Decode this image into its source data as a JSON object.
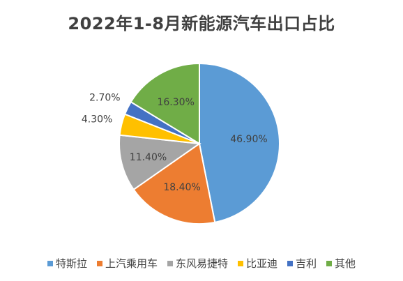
{
  "chart_data": {
    "type": "pie",
    "title": "2022年1-8月新能源汽车出口占比",
    "categories": [
      "特斯拉",
      "上汽乘用车",
      "东风易捷特",
      "比亚迪",
      "吉利",
      "其他"
    ],
    "values": [
      46.9,
      18.4,
      11.4,
      4.3,
      2.7,
      16.3
    ],
    "labels": [
      "46.90%",
      "18.40%",
      "11.40%",
      "4.30%",
      "2.70%",
      "16.30%"
    ],
    "colors": [
      "#5B9BD5",
      "#ED7D31",
      "#A5A5A5",
      "#FFC000",
      "#4472C4",
      "#70AD47"
    ],
    "start": "12 o'clock",
    "direction": "clockwise",
    "legend_position": "bottom"
  }
}
